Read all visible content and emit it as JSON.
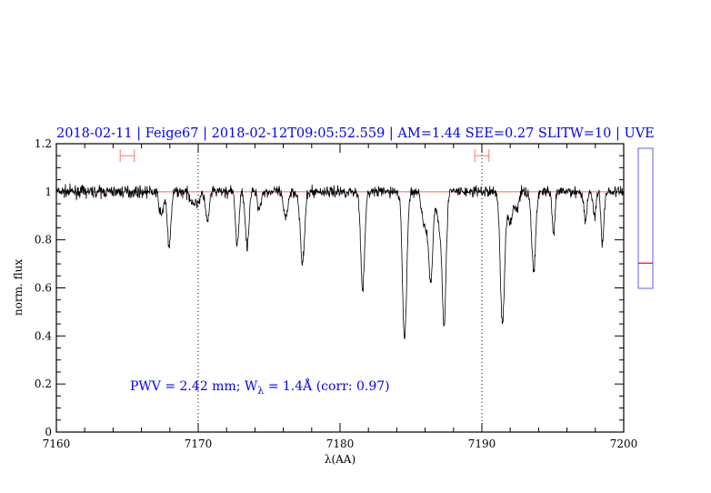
{
  "chart_data": {
    "type": "line",
    "title": "2018-02-11 | Feige67 | 2018-02-12T09:05:52.559 | AM=1.44  SEE=0.27  SLITW=10 | UVE",
    "xlabel": "λ(AA)",
    "ylabel": "norm. flux",
    "xlim": [
      7160,
      7200
    ],
    "ylim": [
      0,
      1.2
    ],
    "xticks": [
      7160,
      7170,
      7180,
      7190,
      7200
    ],
    "yticks": [
      0,
      0.2,
      0.4,
      0.6,
      0.8,
      1,
      1.2
    ],
    "xtick_labels": [
      "7160",
      "7170",
      "7180",
      "7190",
      "7200"
    ],
    "ytick_labels": [
      "0",
      "0.2",
      "0.4",
      "0.6",
      "0.8",
      "1",
      "1.2"
    ],
    "continuum_level": 1.0,
    "reference_lines": [
      7170,
      7190
    ],
    "error_bars": [
      {
        "center": 7165,
        "low": 7164.5,
        "high": 7165.5,
        "y": 1.15
      },
      {
        "center": 7190,
        "low": 7189.5,
        "high": 7190.5,
        "y": 1.15
      }
    ],
    "noise_sigma": 0.012,
    "absorption_features": [
      {
        "center": 7167.4,
        "depth": 0.1,
        "width": 0.15
      },
      {
        "center": 7167.95,
        "depth": 0.24,
        "width": 0.12
      },
      {
        "center": 7170.65,
        "depth": 0.13,
        "width": 0.12
      },
      {
        "center": 7169.8,
        "depth": 0.05,
        "width": 0.3
      },
      {
        "center": 7172.75,
        "depth": 0.22,
        "width": 0.12
      },
      {
        "center": 7173.45,
        "depth": 0.23,
        "width": 0.12
      },
      {
        "center": 7174.3,
        "depth": 0.07,
        "width": 0.12
      },
      {
        "center": 7176.15,
        "depth": 0.11,
        "width": 0.15
      },
      {
        "center": 7177.35,
        "depth": 0.3,
        "width": 0.15
      },
      {
        "center": 7181.6,
        "depth": 0.4,
        "width": 0.14
      },
      {
        "center": 7184.55,
        "depth": 0.61,
        "width": 0.15
      },
      {
        "center": 7186.4,
        "depth": 0.37,
        "width": 0.14
      },
      {
        "center": 7186.0,
        "depth": 0.15,
        "width": 0.2
      },
      {
        "center": 7187.35,
        "depth": 0.5,
        "width": 0.13
      },
      {
        "center": 7187.05,
        "depth": 0.15,
        "width": 0.2
      },
      {
        "center": 7191.45,
        "depth": 0.55,
        "width": 0.15
      },
      {
        "center": 7192.0,
        "depth": 0.12,
        "width": 0.2
      },
      {
        "center": 7192.5,
        "depth": 0.07,
        "width": 0.12
      },
      {
        "center": 7193.65,
        "depth": 0.33,
        "width": 0.14
      },
      {
        "center": 7195.05,
        "depth": 0.18,
        "width": 0.1
      },
      {
        "center": 7197.3,
        "depth": 0.11,
        "width": 0.12
      },
      {
        "center": 7197.95,
        "depth": 0.1,
        "width": 0.1
      },
      {
        "center": 7198.5,
        "depth": 0.22,
        "width": 0.1
      }
    ],
    "annotation": {
      "pwv_prefix": "PWV = 2.42 mm; W",
      "subscript": "λ",
      "suffix": " = 1.4Å (corr: 0.97)"
    },
    "side_indicator": {
      "min": 0,
      "max": 1,
      "value": 0.18
    },
    "colors": {
      "title": "#0000ff",
      "spectrum": "#000000",
      "continuum": "#ff6060",
      "error_bar": "#ff7070",
      "indicator_box": "#7878ff",
      "indicator_mark": "#ff0000"
    }
  }
}
